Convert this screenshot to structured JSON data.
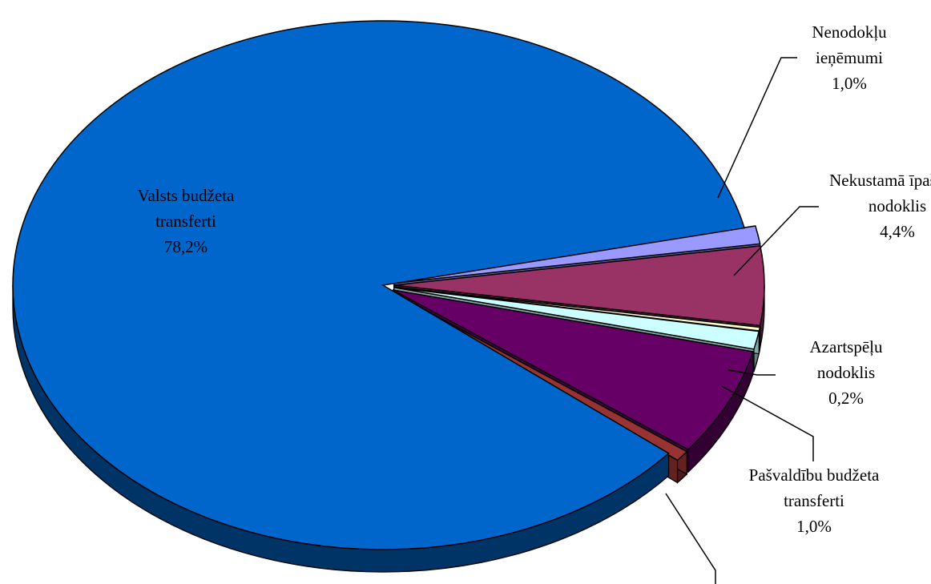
{
  "chart_data": {
    "type": "pie",
    "title": "",
    "three_d": true,
    "slices": [
      {
        "label_lines": [
          "Nenodokļu",
          "ieņēmumi"
        ],
        "value_label": "1,0%",
        "value": 1.0,
        "color": "#9999ff",
        "exploded": true
      },
      {
        "label_lines": [
          "Nekustamā īpašuma",
          "nodoklis"
        ],
        "value_label": "4,4%",
        "value": 4.4,
        "color": "#993366",
        "exploded": true
      },
      {
        "label_lines": [
          "Azartspēļu",
          "nodoklis"
        ],
        "value_label": "0,2%",
        "value": 0.2,
        "color": "#ffffcc",
        "exploded": true
      },
      {
        "label_lines": [
          "Pašvaldību budžeta",
          "transferti"
        ],
        "value_label": "1,0%",
        "value": 1.0,
        "color": "#ccffff",
        "exploded": true
      },
      {
        "label_lines": [],
        "value_label": "",
        "value": 6.0,
        "color": "#660066",
        "exploded": true
      },
      {
        "label_lines": [],
        "value_label": "",
        "value": 0.6,
        "color": "#993333",
        "exploded": true
      },
      {
        "label_lines": [
          "Valsts budžeta",
          "transferti"
        ],
        "value_label": "78,2%",
        "value": 78.2,
        "color": "#0066cc",
        "exploded": false
      }
    ],
    "legend": "none"
  }
}
